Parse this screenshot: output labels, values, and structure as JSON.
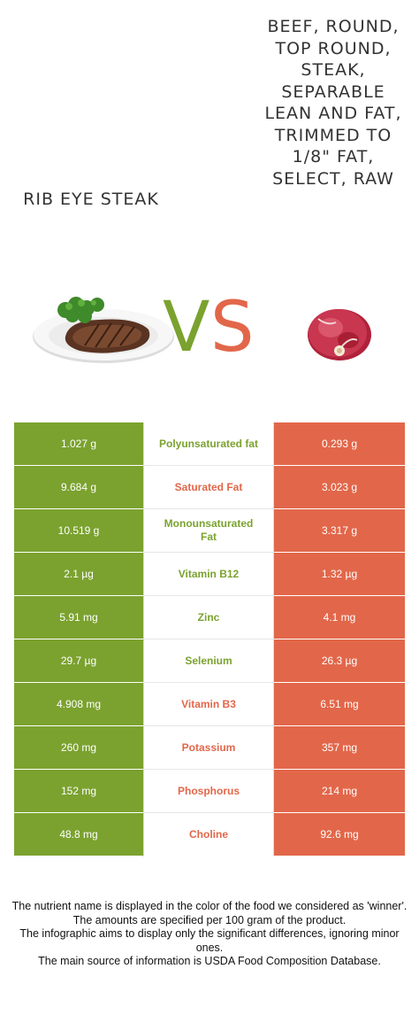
{
  "colors": {
    "left": "#7ba22f",
    "right": "#e2674a"
  },
  "left_food": {
    "title": "Rib eye steak",
    "image_icon": "steak-plate-icon"
  },
  "right_food": {
    "title": "Beef, round, top round, steak, separable lean and fat, trimmed to 1/8\" fat, select, raw",
    "image_icon": "raw-beef-icon"
  },
  "vs": {
    "v": "V",
    "s": "S"
  },
  "rows": [
    {
      "left": "1.027 g",
      "nutrient": "Polyunsaturated fat",
      "right": "0.293 g",
      "winner": "left"
    },
    {
      "left": "9.684 g",
      "nutrient": "Saturated Fat",
      "right": "3.023 g",
      "winner": "right"
    },
    {
      "left": "10.519 g",
      "nutrient": "Monounsaturated Fat",
      "right": "3.317 g",
      "winner": "left"
    },
    {
      "left": "2.1 µg",
      "nutrient": "Vitamin B12",
      "right": "1.32 µg",
      "winner": "left"
    },
    {
      "left": "5.91 mg",
      "nutrient": "Zinc",
      "right": "4.1 mg",
      "winner": "left"
    },
    {
      "left": "29.7 µg",
      "nutrient": "Selenium",
      "right": "26.3 µg",
      "winner": "left"
    },
    {
      "left": "4.908 mg",
      "nutrient": "Vitamin B3",
      "right": "6.51 mg",
      "winner": "right"
    },
    {
      "left": "260 mg",
      "nutrient": "Potassium",
      "right": "357 mg",
      "winner": "right"
    },
    {
      "left": "152 mg",
      "nutrient": "Phosphorus",
      "right": "214 mg",
      "winner": "right"
    },
    {
      "left": "48.8 mg",
      "nutrient": "Choline",
      "right": "92.6 mg",
      "winner": "right"
    }
  ],
  "footer": {
    "line1": "The nutrient name is displayed in the color of the food we considered as 'winner'.",
    "line2": "The amounts are specified per 100 gram of the product.",
    "line3": "The infographic aims to display only the significant differences, ignoring minor ones.",
    "line4": "The main source of information is USDA Food Composition Database."
  }
}
